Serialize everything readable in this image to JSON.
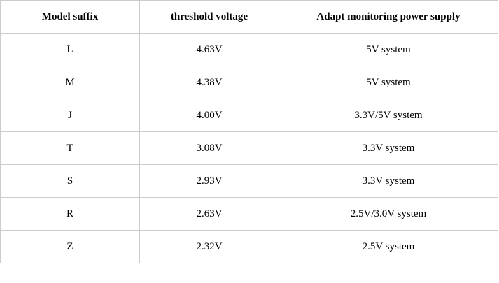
{
  "table": {
    "headers": [
      "Model suffix",
      "threshold voltage",
      "Adapt monitoring power supply"
    ],
    "rows": [
      [
        "L",
        "4.63V",
        "5V system"
      ],
      [
        "M",
        "4.38V",
        "5V system"
      ],
      [
        "J",
        "4.00V",
        "3.3V/5V system"
      ],
      [
        "T",
        "3.08V",
        "3.3V system"
      ],
      [
        "S",
        "2.93V",
        "3.3V system"
      ],
      [
        "R",
        "2.63V",
        "2.5V/3.0V system"
      ],
      [
        "Z",
        "2.32V",
        "2.5V system"
      ]
    ]
  }
}
